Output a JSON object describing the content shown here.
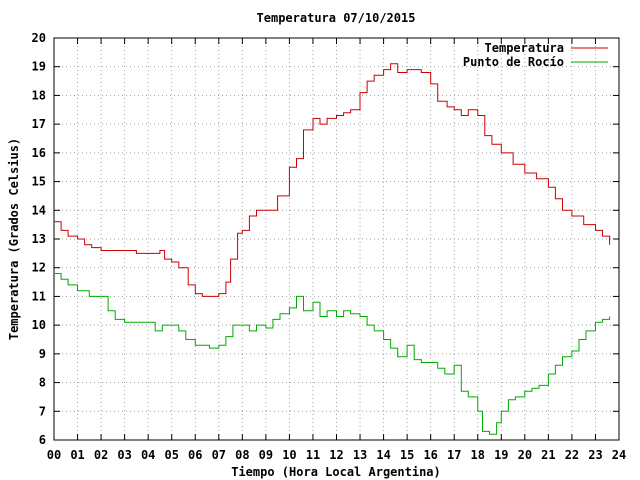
{
  "chart_data": {
    "type": "line",
    "title": "Temperatura 07/10/2015",
    "xlabel": "Tiempo (Hora Local Argentina)",
    "ylabel": "Temperatura (Grados Celsius)",
    "xlim": [
      0,
      24
    ],
    "ylim": [
      6,
      20
    ],
    "x_ticks": [
      "00",
      "01",
      "02",
      "03",
      "04",
      "05",
      "06",
      "07",
      "08",
      "09",
      "10",
      "11",
      "12",
      "13",
      "14",
      "15",
      "16",
      "17",
      "18",
      "19",
      "20",
      "21",
      "22",
      "23",
      "24"
    ],
    "y_ticks": [
      6,
      7,
      8,
      9,
      10,
      11,
      12,
      13,
      14,
      15,
      16,
      17,
      18,
      19,
      20
    ],
    "grid": true,
    "legend_position": "top-right",
    "series": [
      {
        "name": "Temperatura",
        "color": "#cc0000",
        "x": [
          0.0,
          0.3,
          0.6,
          1.0,
          1.3,
          1.6,
          2.0,
          2.3,
          2.7,
          3.0,
          3.5,
          4.0,
          4.5,
          4.7,
          5.0,
          5.3,
          5.7,
          6.0,
          6.3,
          6.7,
          7.0,
          7.3,
          7.5,
          7.8,
          8.0,
          8.3,
          8.6,
          9.0,
          9.5,
          10.0,
          10.3,
          10.6,
          11.0,
          11.3,
          11.6,
          12.0,
          12.3,
          12.6,
          13.0,
          13.3,
          13.6,
          14.0,
          14.3,
          14.6,
          15.0,
          15.3,
          15.6,
          16.0,
          16.3,
          16.7,
          17.0,
          17.3,
          17.6,
          18.0,
          18.3,
          18.6,
          19.0,
          19.5,
          20.0,
          20.5,
          21.0,
          21.3,
          21.6,
          22.0,
          22.5,
          23.0,
          23.3,
          23.6
        ],
        "values": [
          13.6,
          13.3,
          13.1,
          13.0,
          12.8,
          12.7,
          12.6,
          12.6,
          12.6,
          12.6,
          12.5,
          12.5,
          12.6,
          12.3,
          12.2,
          12.0,
          11.4,
          11.1,
          11.0,
          11.0,
          11.1,
          11.5,
          12.3,
          13.2,
          13.3,
          13.8,
          14.0,
          14.0,
          14.5,
          15.5,
          15.8,
          16.8,
          17.2,
          17.0,
          17.2,
          17.3,
          17.4,
          17.5,
          18.1,
          18.5,
          18.7,
          18.9,
          19.1,
          18.8,
          18.9,
          18.9,
          18.8,
          18.4,
          17.8,
          17.6,
          17.5,
          17.3,
          17.5,
          17.3,
          16.6,
          16.3,
          16.0,
          15.6,
          15.3,
          15.1,
          14.8,
          14.4,
          14.0,
          13.8,
          13.5,
          13.3,
          13.1,
          12.8
        ]
      },
      {
        "name": "Punto de Rocío",
        "color": "#00aa00",
        "x": [
          0.0,
          0.3,
          0.6,
          1.0,
          1.5,
          2.0,
          2.3,
          2.6,
          3.0,
          3.5,
          4.0,
          4.3,
          4.6,
          5.0,
          5.3,
          5.6,
          6.0,
          6.3,
          6.6,
          7.0,
          7.3,
          7.6,
          8.0,
          8.3,
          8.6,
          9.0,
          9.3,
          9.6,
          10.0,
          10.3,
          10.6,
          11.0,
          11.3,
          11.6,
          12.0,
          12.3,
          12.6,
          13.0,
          13.3,
          13.6,
          14.0,
          14.3,
          14.6,
          15.0,
          15.3,
          15.6,
          16.0,
          16.3,
          16.6,
          17.0,
          17.3,
          17.6,
          18.0,
          18.2,
          18.5,
          18.8,
          19.0,
          19.3,
          19.6,
          20.0,
          20.3,
          20.6,
          21.0,
          21.3,
          21.6,
          22.0,
          22.3,
          22.6,
          23.0,
          23.3,
          23.6
        ],
        "values": [
          11.8,
          11.6,
          11.4,
          11.2,
          11.0,
          11.0,
          10.5,
          10.2,
          10.1,
          10.1,
          10.1,
          9.8,
          10.0,
          10.0,
          9.8,
          9.5,
          9.3,
          9.3,
          9.2,
          9.3,
          9.6,
          10.0,
          10.0,
          9.8,
          10.0,
          9.9,
          10.2,
          10.4,
          10.6,
          11.0,
          10.5,
          10.8,
          10.3,
          10.5,
          10.3,
          10.5,
          10.4,
          10.3,
          10.0,
          9.8,
          9.5,
          9.2,
          8.9,
          9.3,
          8.8,
          8.7,
          8.7,
          8.5,
          8.3,
          8.6,
          7.7,
          7.5,
          7.0,
          6.3,
          6.2,
          6.6,
          7.0,
          7.4,
          7.5,
          7.7,
          7.8,
          7.9,
          8.3,
          8.6,
          8.9,
          9.1,
          9.5,
          9.8,
          10.1,
          10.2,
          10.3
        ]
      }
    ]
  }
}
